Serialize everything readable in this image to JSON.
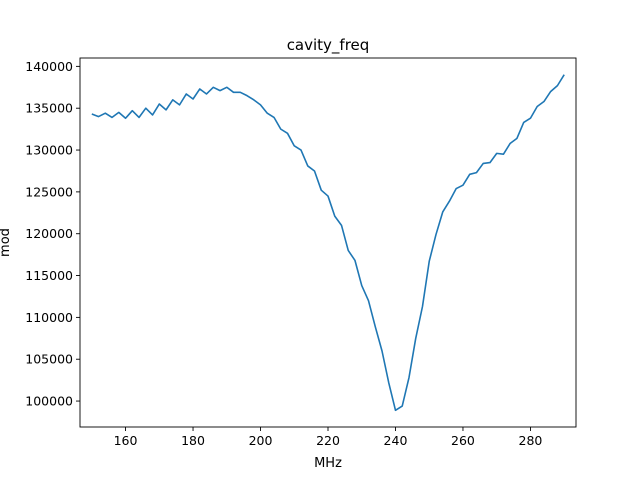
{
  "chart_data": {
    "type": "line",
    "title": "cavity_freq",
    "xlabel": "MHz",
    "ylabel": "mod",
    "xlim": [
      146.5,
      293.5
    ],
    "ylim": [
      96900,
      141000
    ],
    "xticks": [
      160,
      180,
      200,
      220,
      240,
      260,
      280
    ],
    "yticks": [
      100000,
      105000,
      110000,
      115000,
      120000,
      125000,
      130000,
      135000,
      140000
    ],
    "grid": false,
    "line_color": "#1f77b4",
    "series": [
      {
        "x": [
          150,
          152,
          154,
          156,
          158,
          160,
          162,
          164,
          166,
          168,
          170,
          172,
          174,
          176,
          178,
          180,
          182,
          184,
          186,
          188,
          190,
          192,
          194,
          196,
          198,
          200,
          202,
          204,
          206,
          208,
          210,
          212,
          214,
          216,
          218,
          220,
          222,
          224,
          226,
          228,
          230,
          232,
          234,
          236,
          238,
          240,
          242,
          244,
          246,
          248,
          250,
          252,
          254,
          256,
          258,
          260,
          262,
          264,
          266,
          268,
          270,
          272,
          274,
          276,
          278,
          280,
          282,
          284,
          286,
          288,
          290
        ],
        "values": [
          134300,
          134000,
          134400,
          133900,
          134500,
          133800,
          134700,
          133900,
          135000,
          134200,
          135500,
          134800,
          136000,
          135400,
          136700,
          136100,
          137300,
          136700,
          137500,
          137100,
          137500,
          136900,
          136900,
          136500,
          136000,
          135400,
          134400,
          133900,
          132500,
          132000,
          130500,
          130000,
          128100,
          127500,
          125200,
          124500,
          122100,
          121000,
          118000,
          116800,
          113800,
          112000,
          108900,
          106000,
          102200,
          98900,
          99400,
          102800,
          107500,
          111300,
          116700,
          119900,
          122600,
          123900,
          125400,
          125800,
          127100,
          127300,
          128400,
          128500,
          129600,
          129500,
          130800,
          131400,
          133300,
          133800,
          135200,
          135800,
          137000,
          137700,
          139000
        ]
      }
    ]
  }
}
